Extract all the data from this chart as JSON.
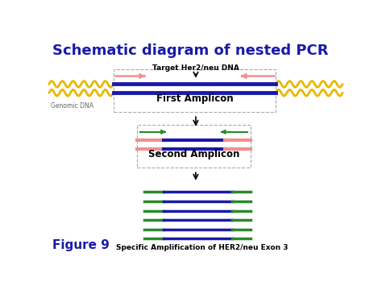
{
  "title": "Schematic diagram of nested PCR",
  "title_color": "#1a1aaa",
  "title_fontsize": 13,
  "bg_color": "#ffffff",
  "label_target_dna": "Target Her2/neu DNA",
  "label_genomic": "Genomic DNA",
  "label_first_amplicon": "First Amplicon",
  "label_second_amplicon": "Second Amplicon",
  "label_figure": "Figure 9",
  "label_specific": "Specific Amplification of HER2/neu Exon 3",
  "figure_label_color": "#1a1aaa",
  "colors": {
    "yellow_wave": "#e8b800",
    "dark_blue": "#1a1aaa",
    "pink": "#f09090",
    "green": "#2a8a2a",
    "arrow": "#111111"
  }
}
